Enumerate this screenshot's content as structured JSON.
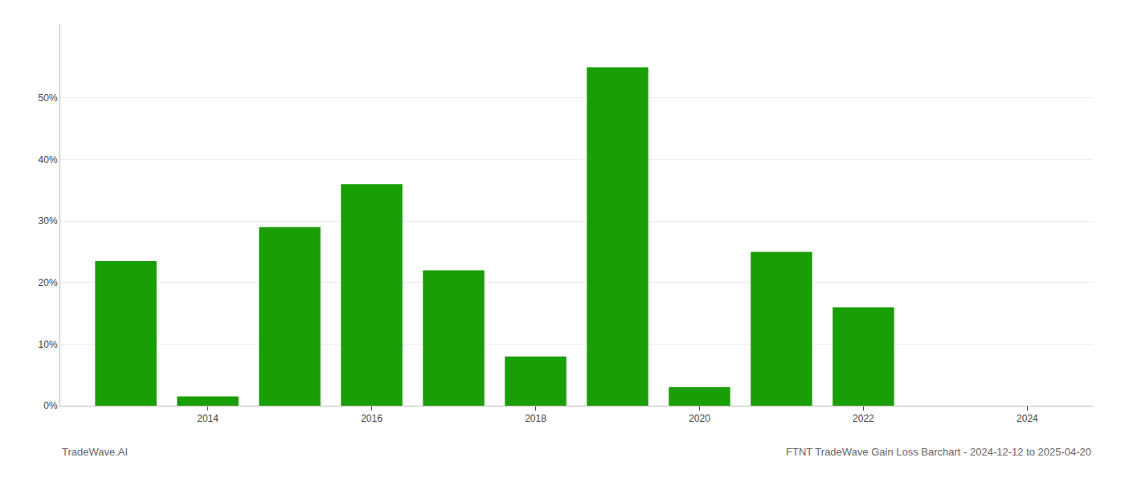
{
  "chart_data": {
    "type": "bar",
    "title": "FTNT TradeWave Gain Loss Barchart - 2024-12-12 to 2025-04-20",
    "annotations": [
      "TradeWave.AI"
    ],
    "x": [
      2013,
      2014,
      2015,
      2016,
      2017,
      2018,
      2019,
      2020,
      2021,
      2022,
      2023
    ],
    "values": [
      0.235,
      0.015,
      0.29,
      0.36,
      0.22,
      0.08,
      0.55,
      0.03,
      0.25,
      0.16,
      0.0
    ],
    "color": "#1a9e06",
    "xlim": [
      2012.2,
      2024.8
    ],
    "xticks": [
      2014,
      2016,
      2018,
      2020,
      2022,
      2024
    ],
    "ylim": [
      0,
      0.62
    ],
    "yticks": [
      {
        "value": 0.0,
        "label": "0%"
      },
      {
        "value": 0.1,
        "label": "10%"
      },
      {
        "value": 0.2,
        "label": "20%"
      },
      {
        "value": 0.3,
        "label": "30%"
      },
      {
        "value": 0.4,
        "label": "40%"
      },
      {
        "value": 0.5,
        "label": "50%"
      }
    ],
    "grid": true
  }
}
